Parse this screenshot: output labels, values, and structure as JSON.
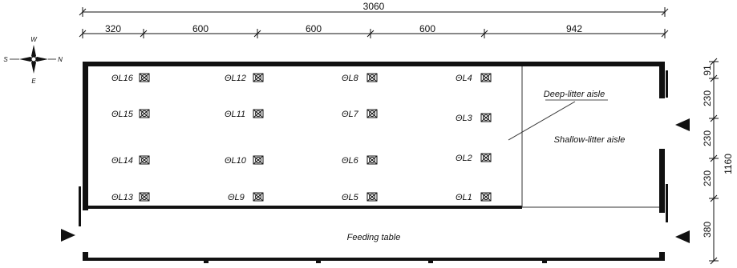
{
  "dimensions": {
    "overall": "3060",
    "segments": [
      "320",
      "600",
      "600",
      "600",
      "942"
    ],
    "vertical": [
      "91",
      "230",
      "230",
      "230",
      "380"
    ],
    "vertical_total": "1160"
  },
  "compass": {
    "n": "N",
    "s": "S",
    "e": "E",
    "w": "W"
  },
  "labels": {
    "deep_litter": "Deep-litter aisle",
    "shallow_litter": "Shallow-litter aisle",
    "feeding_table": "Feeding table"
  },
  "sensors": [
    "ΘL16",
    "ΘL12",
    "ΘL8",
    "ΘL4",
    "ΘL15",
    "ΘL11",
    "ΘL7",
    "ΘL3",
    "ΘL14",
    "ΘL10",
    "ΘL6",
    "ΘL2",
    "ΘL13",
    "ΘL9",
    "ΘL5",
    "ΘL1"
  ]
}
